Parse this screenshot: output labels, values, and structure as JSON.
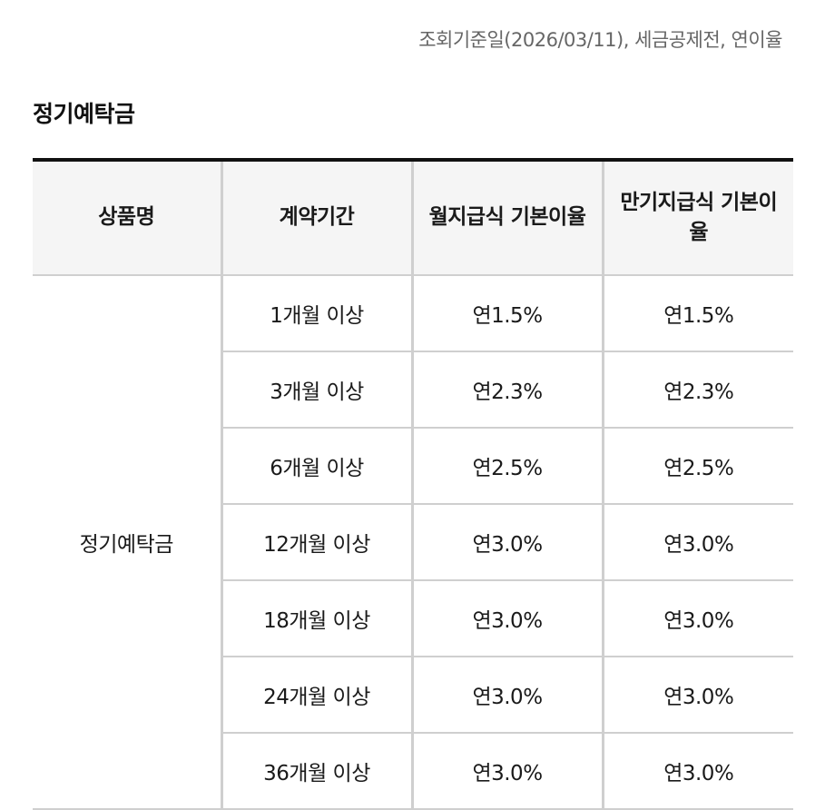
{
  "notice": "조회기준일(2026/03/11), 세금공제전, 연이율",
  "section_title": "정기예탁금",
  "table": {
    "headers": {
      "product": "상품명",
      "period": "계약기간",
      "monthly_rate": "월지급식 기본이율",
      "maturity_rate": "만기지급식 기본이율"
    },
    "product_name": "정기예탁금",
    "rows": [
      {
        "period": "1개월 이상",
        "monthly_rate": "연1.5%",
        "maturity_rate": "연1.5%"
      },
      {
        "period": "3개월 이상",
        "monthly_rate": "연2.3%",
        "maturity_rate": "연2.3%"
      },
      {
        "period": "6개월 이상",
        "monthly_rate": "연2.5%",
        "maturity_rate": "연2.5%"
      },
      {
        "period": "12개월 이상",
        "monthly_rate": "연3.0%",
        "maturity_rate": "연3.0%"
      },
      {
        "period": "18개월 이상",
        "monthly_rate": "연3.0%",
        "maturity_rate": "연3.0%"
      },
      {
        "period": "24개월 이상",
        "monthly_rate": "연3.0%",
        "maturity_rate": "연3.0%"
      },
      {
        "period": "36개월 이상",
        "monthly_rate": "연3.0%",
        "maturity_rate": "연3.0%"
      }
    ]
  }
}
